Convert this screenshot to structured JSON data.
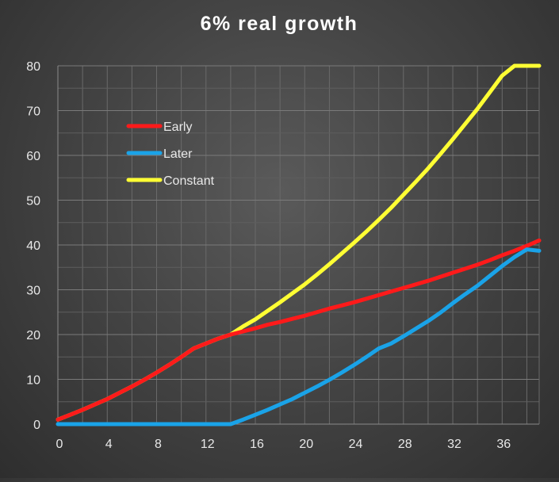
{
  "chart_data": {
    "type": "line",
    "title": "6% real growth",
    "xlabel": "",
    "ylabel": "",
    "xlim": [
      0,
      39
    ],
    "ylim": [
      0,
      80
    ],
    "x_ticks": [
      0,
      4,
      8,
      12,
      16,
      20,
      24,
      28,
      32,
      36
    ],
    "y_ticks": [
      0,
      10,
      20,
      30,
      40,
      50,
      60,
      70,
      80
    ],
    "grid": true,
    "legend_position": "top-left",
    "x": [
      0,
      1,
      2,
      3,
      4,
      5,
      6,
      7,
      8,
      9,
      10,
      11,
      12,
      13,
      14,
      15,
      16,
      17,
      18,
      19,
      20,
      21,
      22,
      23,
      24,
      25,
      26,
      27,
      28,
      29,
      30,
      31,
      32,
      33,
      34,
      35,
      36,
      37,
      38,
      39
    ],
    "series": [
      {
        "name": "Early",
        "color": "#ff1a1a",
        "values": [
          1.0,
          2.1,
          3.2,
          4.4,
          5.6,
          7.0,
          8.4,
          9.9,
          11.5,
          13.2,
          15.0,
          16.9,
          18.0,
          19.1,
          20.0,
          20.7,
          21.4,
          22.2,
          22.8,
          23.5,
          24.2,
          25.0,
          25.8,
          26.5,
          27.2,
          28.0,
          28.8,
          29.6,
          30.4,
          31.2,
          32.0,
          32.9,
          33.8,
          34.7,
          35.6,
          36.6,
          37.7,
          38.7,
          39.8,
          41.0
        ]
      },
      {
        "name": "Later",
        "color": "#1aa3e8",
        "values": [
          0,
          0,
          0,
          0,
          0,
          0,
          0,
          0,
          0,
          0,
          0,
          0,
          0,
          0,
          0,
          1.0,
          2.1,
          3.2,
          4.4,
          5.6,
          7.0,
          8.4,
          9.9,
          11.5,
          13.2,
          15.0,
          16.9,
          18.0,
          19.6,
          21.3,
          23.0,
          24.9,
          27.0,
          29.0,
          30.9,
          33.1,
          35.3,
          37.3,
          39.0,
          38.7
        ]
      },
      {
        "name": "Constant",
        "color": "#ffff33",
        "values": [
          1.0,
          2.1,
          3.2,
          4.4,
          5.6,
          7.0,
          8.4,
          9.9,
          11.5,
          13.2,
          15.0,
          16.9,
          18.0,
          19.1,
          20.0,
          21.8,
          23.4,
          25.3,
          27.2,
          29.2,
          31.2,
          33.4,
          35.7,
          38.1,
          40.5,
          43.0,
          45.6,
          48.3,
          51.2,
          54.1,
          57.1,
          60.3,
          63.6,
          67.0,
          70.4,
          74.1,
          77.8,
          80.0,
          80.0,
          80.0
        ]
      }
    ]
  }
}
